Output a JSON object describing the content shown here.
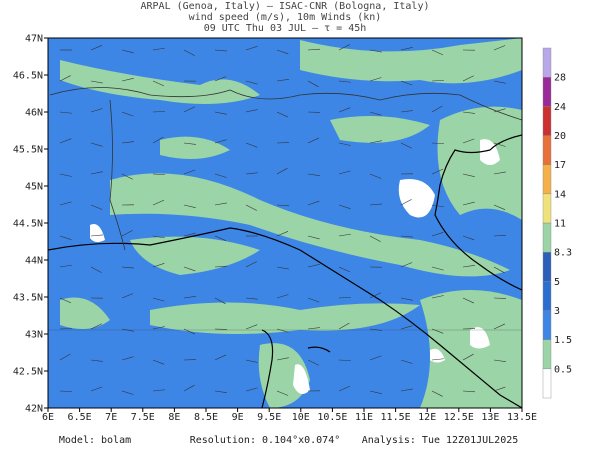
{
  "header": {
    "lines": [
      "ARPAL (Genoa, Italy)  —  ISAC-CNR (Bologna, Italy)",
      "wind speed (m/s), 10m Winds (kn)",
      "09 UTC Thu 03 JUL  —  τ = 45h"
    ]
  },
  "map": {
    "lat_labels": [
      "42N",
      "42.5N",
      "43N",
      "43.5N",
      "44N",
      "44.5N",
      "45N",
      "45.5N",
      "46N",
      "46.5N",
      "47N"
    ],
    "lon_labels": [
      "6E",
      "6.5E",
      "7E",
      "7.5E",
      "8E",
      "8.5E",
      "9E",
      "9.5E",
      "10E",
      "10.5E",
      "11E",
      "11.5E",
      "12E",
      "12.5E",
      "13E",
      "13.5E"
    ]
  },
  "colorbar": {
    "labels": [
      "0.5",
      "1.5",
      "3",
      "5",
      "8.3",
      "11",
      "14",
      "17",
      "20",
      "24",
      "28"
    ]
  },
  "footer": {
    "items": [
      "Model:  bolam",
      "Resolution:  0.104°x0.074°",
      "Analysis:  Tue 12Z01JUL2025"
    ]
  }
}
